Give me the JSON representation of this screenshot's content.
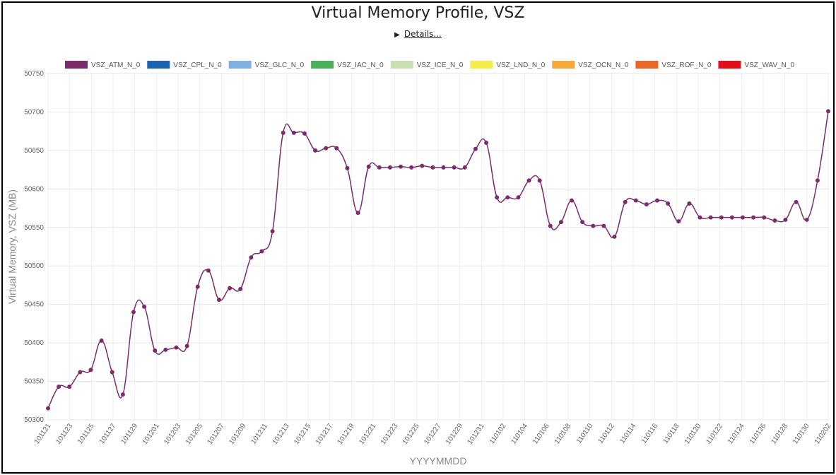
{
  "title": "Virtual Memory Profile, VSZ",
  "details_label": "Details...",
  "colors": {
    "VSZ_ATM_N_0": "#7b2d6b",
    "VSZ_CPL_N_0": "#1e63b0",
    "VSZ_GLC_N_0": "#7fb0e0",
    "VSZ_IAC_N_0": "#4caf5a",
    "VSZ_ICE_N_0": "#c8e0b0",
    "VSZ_LND_N_0": "#f5ec4a",
    "VSZ_OCN_N_0": "#f5a93a",
    "VSZ_ROF_N_0": "#e8682a",
    "VSZ_WAV_N_0": "#e0101a"
  },
  "chart_data": {
    "type": "line",
    "title": "Virtual Memory Profile, VSZ",
    "xlabel": "YYYYMMDD",
    "ylabel": "Virtual Memory, VSZ (MB)",
    "ylim": [
      50300,
      50750
    ],
    "yticks": [
      50300,
      50350,
      50400,
      50450,
      50500,
      50550,
      50600,
      50650,
      50700,
      50750
    ],
    "grid": true,
    "legend_placement": "top",
    "legend": [
      "VSZ_ATM_N_0",
      "VSZ_CPL_N_0",
      "VSZ_GLC_N_0",
      "VSZ_IAC_N_0",
      "VSZ_ICE_N_0",
      "VSZ_LND_N_0",
      "VSZ_OCN_N_0",
      "VSZ_ROF_N_0",
      "VSZ_WAV_N_0"
    ],
    "x_tick_labels": [
      "101121",
      "101123",
      "101125",
      "101127",
      "101129",
      "101201",
      "101203",
      "101205",
      "101207",
      "101209",
      "101211",
      "101213",
      "101215",
      "101217",
      "101219",
      "101221",
      "101223",
      "101225",
      "101227",
      "101229",
      "101231",
      "110102",
      "110104",
      "110106",
      "110108",
      "110110",
      "110112",
      "110114",
      "110116",
      "110118",
      "110120",
      "110122",
      "110124",
      "110126",
      "110128",
      "110130",
      "110202"
    ],
    "series": [
      {
        "name": "VSZ_ATM_N_0",
        "values": [
          50315,
          50343,
          50343,
          50362,
          50365,
          50403,
          50362,
          50333,
          50440,
          50447,
          50390,
          50391,
          50394,
          50396,
          50473,
          50494,
          50456,
          50471,
          50470,
          50511,
          50519,
          50545,
          50673,
          50673,
          50672,
          50650,
          50653,
          50653,
          50627,
          50569,
          50629,
          50628,
          50628,
          50629,
          50628,
          50630,
          50628,
          50628,
          50628,
          50628,
          50652,
          50660,
          50589,
          50589,
          50589,
          50611,
          50611,
          50552,
          50557,
          50585,
          50557,
          50552,
          50552,
          50538,
          50583,
          50585,
          50580,
          50585,
          50581,
          50558,
          50581,
          50563,
          50563,
          50563,
          50563,
          50563,
          50563,
          50563,
          50559,
          50560,
          50583,
          50560,
          50611,
          50701
        ]
      },
      {
        "name": "VSZ_CPL_N_0",
        "values": []
      },
      {
        "name": "VSZ_GLC_N_0",
        "values": []
      },
      {
        "name": "VSZ_IAC_N_0",
        "values": []
      },
      {
        "name": "VSZ_ICE_N_0",
        "values": []
      },
      {
        "name": "VSZ_LND_N_0",
        "values": []
      },
      {
        "name": "VSZ_OCN_N_0",
        "values": []
      },
      {
        "name": "VSZ_ROF_N_0",
        "values": []
      },
      {
        "name": "VSZ_WAV_N_0",
        "values": []
      }
    ]
  }
}
